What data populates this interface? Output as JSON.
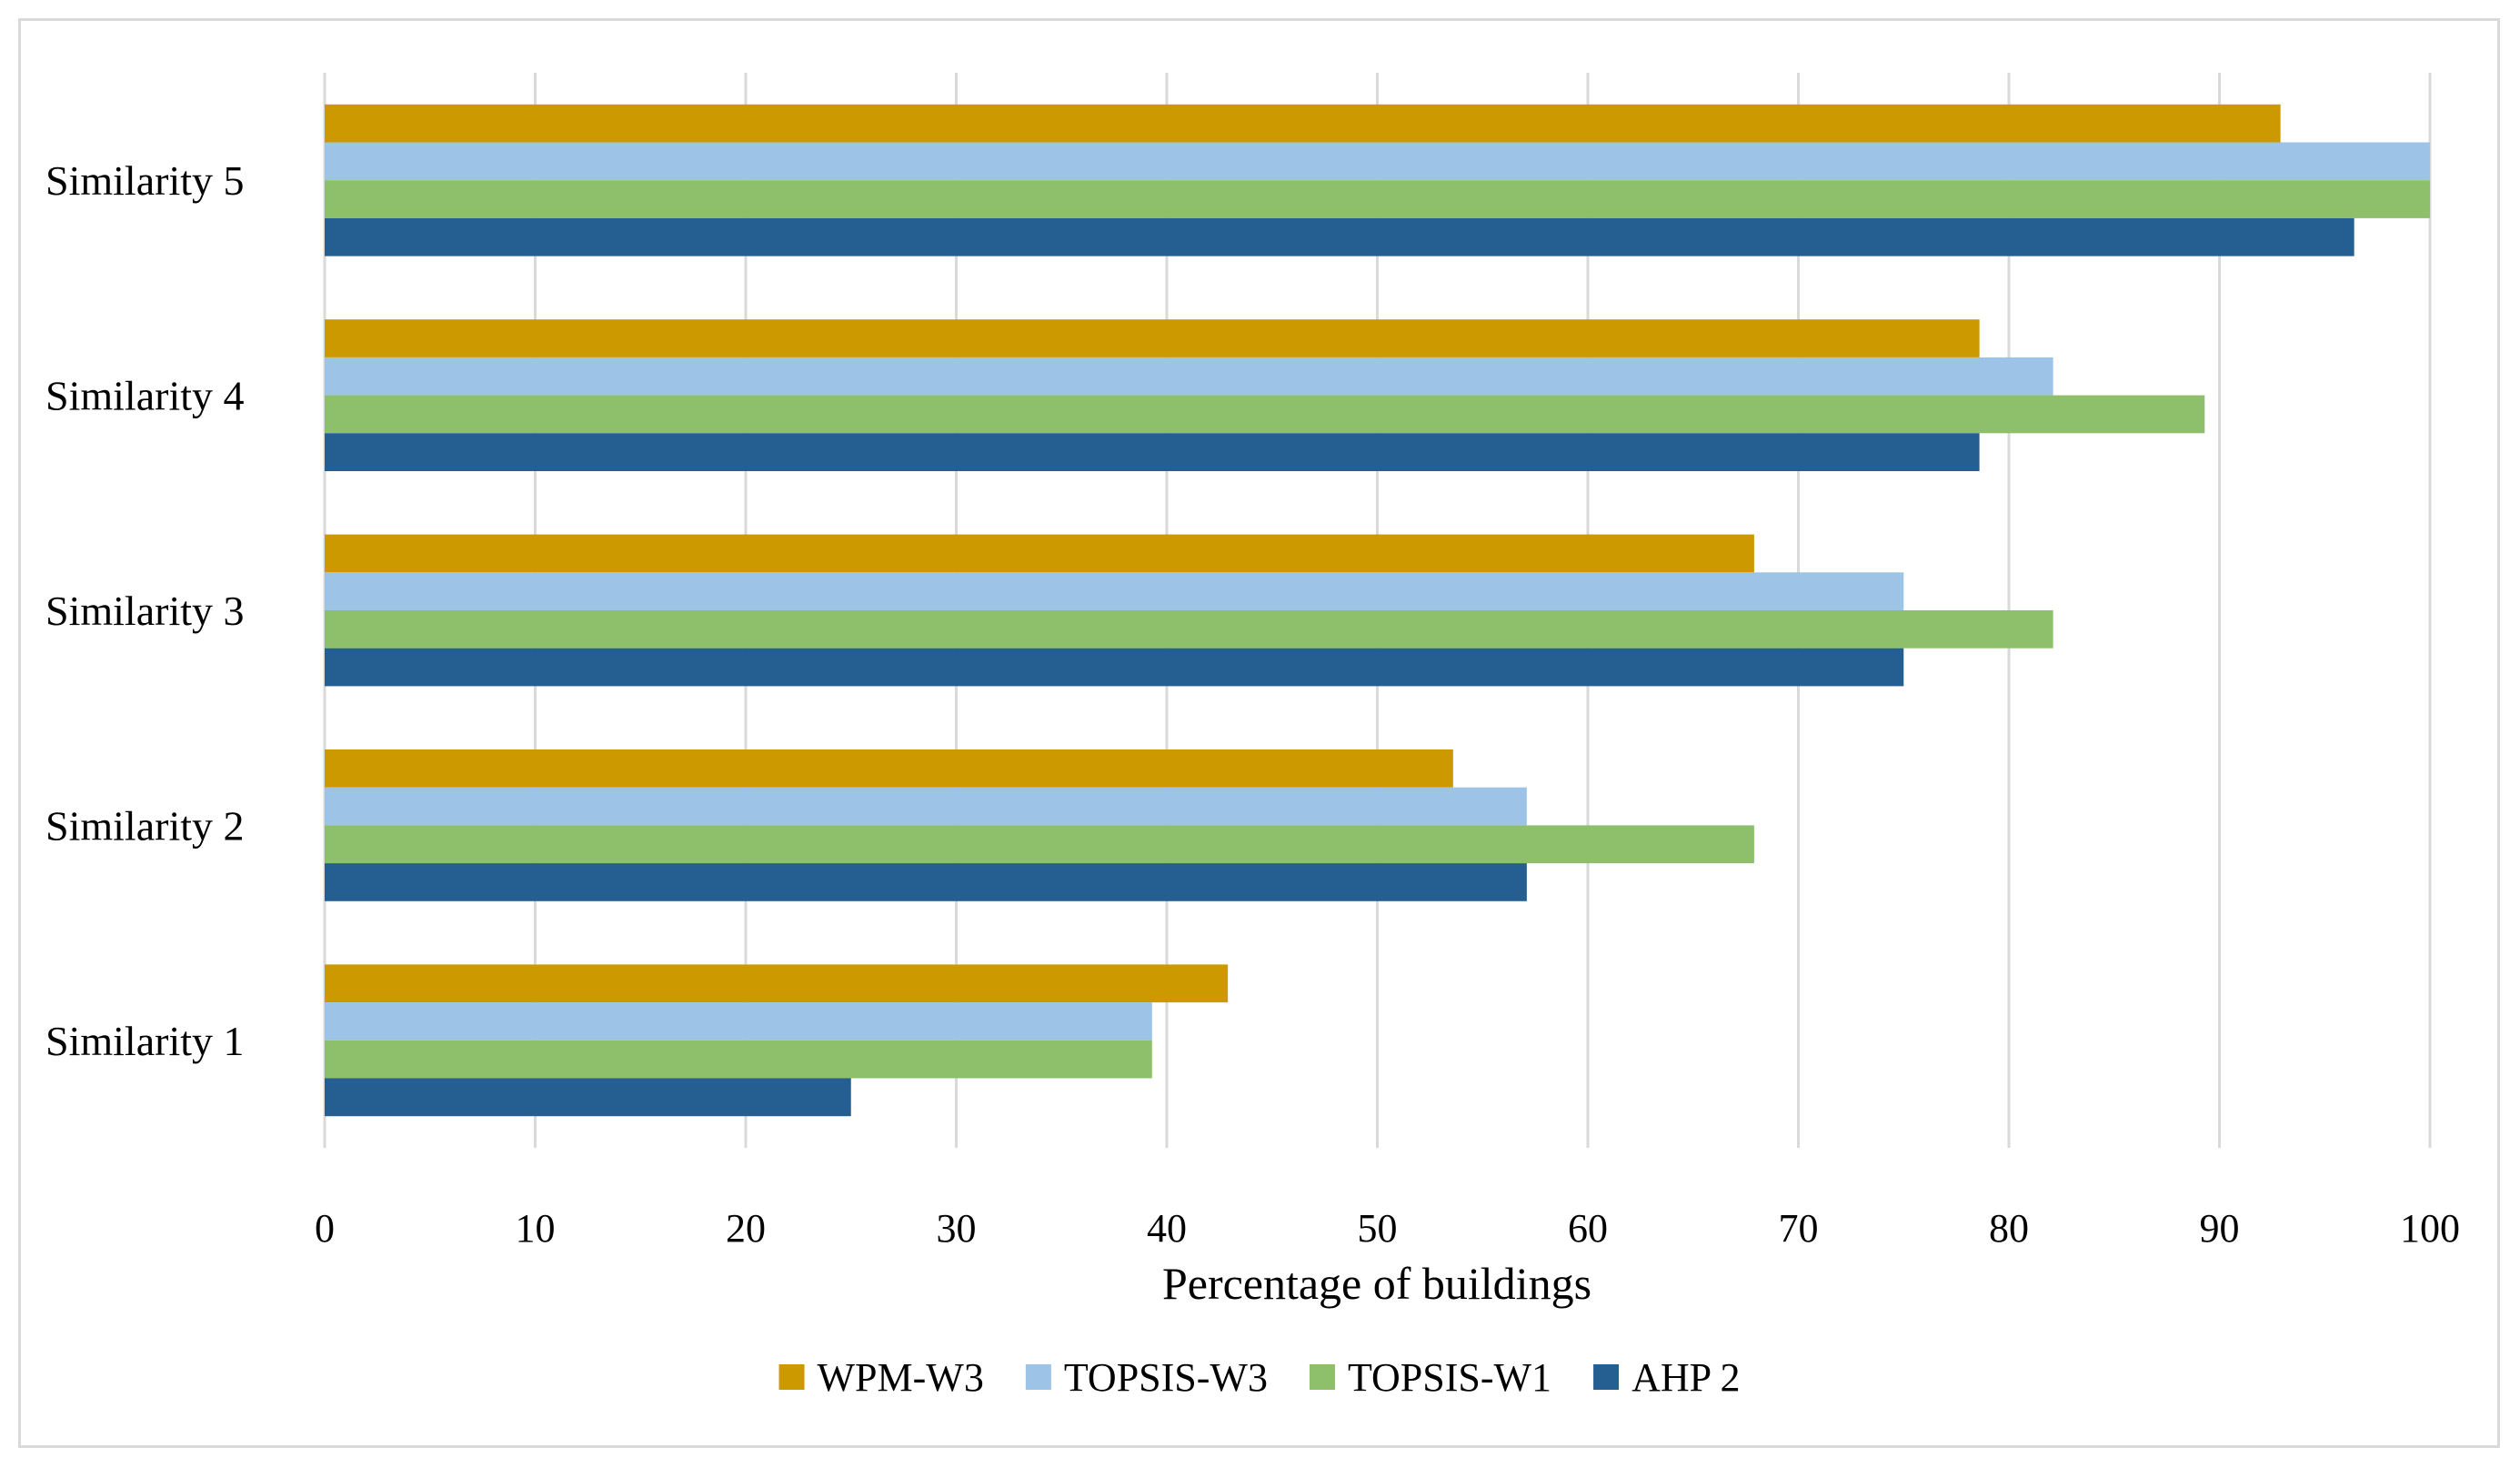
{
  "chart_data": {
    "type": "bar",
    "orientation": "horizontal",
    "categories": [
      "Similarity 1",
      "Similarity 2",
      "Similarity 3",
      "Similarity 4",
      "Similarity 5"
    ],
    "series": [
      {
        "name": "WPM-W3",
        "color": "#cc9900",
        "values": [
          42.9,
          53.6,
          67.9,
          78.6,
          92.9
        ]
      },
      {
        "name": "TOPSIS-W3",
        "color": "#9dc3e6",
        "values": [
          39.3,
          57.1,
          75.0,
          82.1,
          100.0
        ]
      },
      {
        "name": "TOPSIS-W1",
        "color": "#8ec06c",
        "values": [
          39.3,
          67.9,
          82.1,
          89.3,
          100.0
        ]
      },
      {
        "name": "AHP 2",
        "color": "#255e91",
        "values": [
          25.0,
          57.1,
          75.0,
          78.6,
          96.4
        ]
      }
    ],
    "xlabel": "Percentage of buildings",
    "ylabel": "",
    "xlim": [
      0,
      100
    ],
    "xticks": [
      "0",
      "10",
      "20",
      "30",
      "40",
      "50",
      "60",
      "70",
      "80",
      "90",
      "100"
    ],
    "grid": "vertical",
    "legend_position": "bottom"
  }
}
